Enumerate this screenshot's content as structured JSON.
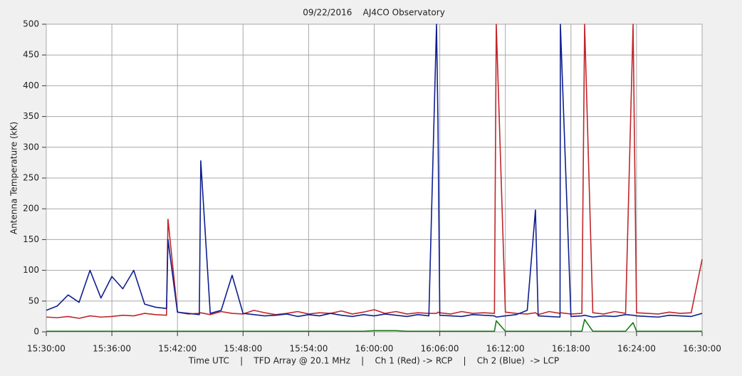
{
  "chart_data": {
    "type": "line",
    "title": "09/22/2016    AJ4CO Observatory",
    "y_label": "Antenna Temperature (kK)",
    "x_label": "Time UTC    |    TFD Array @ 20.1 MHz    |    Ch 1 (Red) -> RCP    |    Ch 2 (Blue)  -> LCP",
    "x": [
      "15:30:00",
      "15:31:00",
      "15:32:00",
      "15:33:00",
      "15:34:00",
      "15:35:00",
      "15:36:00",
      "15:37:00",
      "15:38:00",
      "15:39:00",
      "15:40:00",
      "15:41:00",
      "15:41:08",
      "15:42:00",
      "15:43:00",
      "15:44:00",
      "15:44:08",
      "15:45:00",
      "15:46:00",
      "15:47:00",
      "15:48:00",
      "15:49:00",
      "15:50:00",
      "15:51:00",
      "15:52:00",
      "15:53:00",
      "15:54:00",
      "15:55:00",
      "15:56:00",
      "15:57:00",
      "15:58:00",
      "15:59:00",
      "16:00:00",
      "16:01:00",
      "16:02:00",
      "16:03:00",
      "16:04:00",
      "16:05:00",
      "16:05:42",
      "16:05:50",
      "16:06:00",
      "16:07:00",
      "16:08:00",
      "16:09:00",
      "16:10:00",
      "16:11:00",
      "16:11:10",
      "16:12:00",
      "16:13:00",
      "16:14:00",
      "16:14:45",
      "16:15:00",
      "16:16:00",
      "16:17:00",
      "16:17:02",
      "16:18:00",
      "16:19:00",
      "16:19:15",
      "16:20:00",
      "16:21:00",
      "16:22:00",
      "16:23:00",
      "16:23:41",
      "16:24:00",
      "16:25:00",
      "16:26:00",
      "16:27:00",
      "16:28:00",
      "16:29:00",
      "16:30:00"
    ],
    "series": [
      {
        "color": "#c0262b",
        "values": [
          24,
          23,
          25,
          22,
          26,
          24,
          25,
          27,
          26,
          30,
          28,
          27,
          183,
          32,
          29,
          30,
          31,
          28,
          33,
          30,
          29,
          35,
          31,
          28,
          30,
          33,
          29,
          31,
          30,
          34,
          29,
          32,
          36,
          30,
          33,
          29,
          31,
          30,
          30,
          32,
          31,
          29,
          33,
          30,
          31,
          30,
          500,
          32,
          30,
          29,
          31,
          28,
          33,
          30,
          31,
          29,
          30,
          500,
          31,
          29,
          33,
          30,
          500,
          31,
          30,
          29,
          32,
          30,
          31,
          118
        ]
      },
      {
        "color": "#0f1f8f",
        "values": [
          35,
          42,
          60,
          48,
          100,
          55,
          90,
          70,
          100,
          45,
          40,
          38,
          150,
          32,
          30,
          28,
          278,
          30,
          35,
          92,
          30,
          28,
          26,
          27,
          29,
          25,
          28,
          26,
          30,
          27,
          25,
          28,
          26,
          29,
          27,
          25,
          28,
          26,
          500,
          340,
          27,
          26,
          25,
          28,
          27,
          26,
          24,
          26,
          28,
          35,
          198,
          26,
          25,
          24,
          500,
          25,
          26,
          27,
          24,
          26,
          25,
          28,
          27,
          26,
          25,
          24,
          27,
          26,
          25,
          30
        ]
      },
      {
        "color": "#1a7a1a",
        "values": [
          1,
          1,
          1,
          1,
          1,
          1,
          1,
          1,
          1,
          1,
          1,
          1,
          1,
          1,
          1,
          1,
          1,
          1,
          1,
          1,
          1,
          1,
          1,
          1,
          1,
          1,
          1,
          1,
          1,
          1,
          1,
          1,
          2,
          2,
          2,
          1,
          1,
          1,
          1,
          1,
          1,
          1,
          1,
          1,
          1,
          1,
          18,
          1,
          1,
          1,
          1,
          1,
          1,
          1,
          1,
          1,
          1,
          20,
          1,
          1,
          1,
          1,
          15,
          1,
          1,
          1,
          1,
          1,
          1,
          1
        ]
      }
    ],
    "xlim": [
      "15:30:00",
      "16:30:00"
    ],
    "xticks": [
      "15:30:00",
      "15:36:00",
      "15:42:00",
      "15:48:00",
      "15:54:00",
      "16:00:00",
      "16:06:00",
      "16:12:00",
      "16:18:00",
      "16:24:00",
      "16:30:00"
    ],
    "ylim": [
      0,
      500
    ],
    "yticks": [
      0,
      50,
      100,
      150,
      200,
      250,
      300,
      350,
      400,
      450,
      500
    ],
    "grid": true
  }
}
